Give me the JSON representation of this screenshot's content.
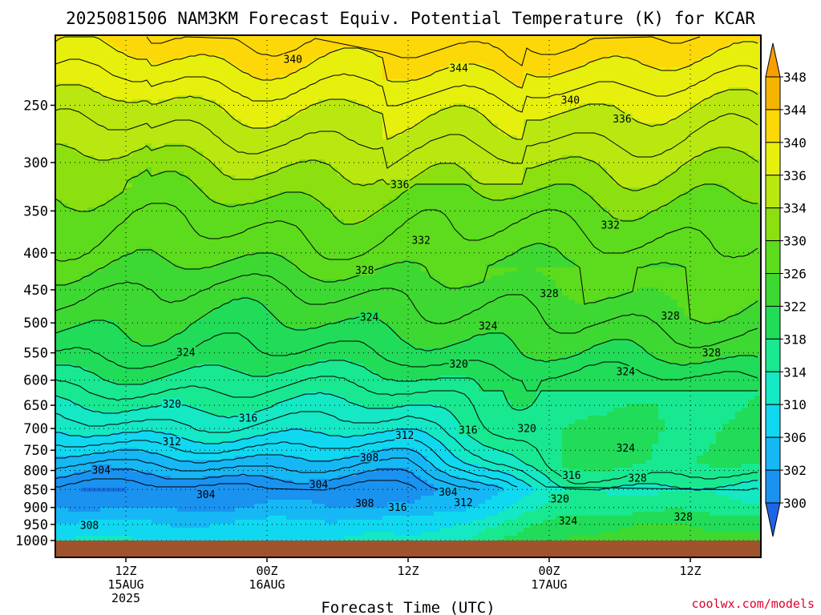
{
  "chart_data": {
    "type": "heatmap",
    "title": "2025081506 NAM3KM Forecast Equiv. Potential Temperature (K) for KCAR",
    "xlabel": "Forecast Time (UTC)",
    "ylabel": "",
    "credit": "coolwx.com/models",
    "x_range_hours": [
      0,
      60
    ],
    "y_scale": "log",
    "y_range_hpa": [
      1000,
      200
    ],
    "y_ticks": [
      {
        "value": 250,
        "label": "250"
      },
      {
        "value": 300,
        "label": "300"
      },
      {
        "value": 350,
        "label": "350"
      },
      {
        "value": 400,
        "label": "400"
      },
      {
        "value": 450,
        "label": "450"
      },
      {
        "value": 500,
        "label": "500"
      },
      {
        "value": 550,
        "label": "550"
      },
      {
        "value": 600,
        "label": "600"
      },
      {
        "value": 650,
        "label": "650"
      },
      {
        "value": 700,
        "label": "700"
      },
      {
        "value": 750,
        "label": "750"
      },
      {
        "value": 800,
        "label": "800"
      },
      {
        "value": 850,
        "label": "850"
      },
      {
        "value": 900,
        "label": "900"
      },
      {
        "value": 950,
        "label": "950"
      },
      {
        "value": 1000,
        "label": "1000"
      }
    ],
    "x_ticks": [
      {
        "hour": 6,
        "lines": [
          "12Z",
          "15AUG",
          "2025"
        ]
      },
      {
        "hour": 18,
        "lines": [
          "00Z",
          "16AUG"
        ]
      },
      {
        "hour": 30,
        "lines": [
          "12Z"
        ]
      },
      {
        "hour": 42,
        "lines": [
          "00Z",
          "17AUG"
        ]
      },
      {
        "hour": 54,
        "lines": [
          "12Z"
        ]
      }
    ],
    "grid": true,
    "colorbar": {
      "placement": "right",
      "levels": [
        300,
        302,
        306,
        310,
        314,
        318,
        322,
        326,
        330,
        334,
        336,
        340,
        344,
        348
      ],
      "labels": [
        "300",
        "302",
        "306",
        "310",
        "314",
        "318",
        "322",
        "326",
        "330",
        "334",
        "336",
        "340",
        "344",
        "348"
      ],
      "colors": [
        "#1a6ee0",
        "#1a92f0",
        "#15b8f5",
        "#10d8f0",
        "#14e8c4",
        "#18e890",
        "#20dc58",
        "#3ed832",
        "#5cdc1c",
        "#8ce010",
        "#b8e810",
        "#e6f00c",
        "#fcd808",
        "#f5b400"
      ],
      "extend_low_color": "#1e64e6",
      "extend_high_color": "#f5a000"
    },
    "ground_color": "#a0522d",
    "contour_labels": [
      {
        "hour": 20.2,
        "p": 216,
        "text": "340"
      },
      {
        "hour": 34.3,
        "p": 222,
        "text": "344"
      },
      {
        "hour": 43.8,
        "p": 246,
        "text": "340"
      },
      {
        "hour": 48.2,
        "p": 261,
        "text": "336"
      },
      {
        "hour": 29.3,
        "p": 322,
        "text": "336"
      },
      {
        "hour": 31.1,
        "p": 384,
        "text": "332"
      },
      {
        "hour": 47.2,
        "p": 366,
        "text": "332"
      },
      {
        "hour": 26.3,
        "p": 423,
        "text": "328"
      },
      {
        "hour": 42.0,
        "p": 455,
        "text": "328"
      },
      {
        "hour": 52.3,
        "p": 489,
        "text": "328"
      },
      {
        "hour": 55.8,
        "p": 550,
        "text": "328"
      },
      {
        "hour": 26.7,
        "p": 491,
        "text": "324"
      },
      {
        "hour": 36.8,
        "p": 505,
        "text": "324"
      },
      {
        "hour": 11.1,
        "p": 549,
        "text": "324"
      },
      {
        "hour": 48.5,
        "p": 584,
        "text": "324"
      },
      {
        "hour": 34.3,
        "p": 570,
        "text": "320"
      },
      {
        "hour": 9.9,
        "p": 647,
        "text": "320"
      },
      {
        "hour": 40.1,
        "p": 700,
        "text": "320"
      },
      {
        "hour": 16.4,
        "p": 677,
        "text": "316"
      },
      {
        "hour": 35.1,
        "p": 703,
        "text": "316"
      },
      {
        "hour": 9.9,
        "p": 730,
        "text": "312"
      },
      {
        "hour": 29.7,
        "p": 715,
        "text": "312"
      },
      {
        "hour": 26.7,
        "p": 768,
        "text": "308"
      },
      {
        "hour": 3.9,
        "p": 799,
        "text": "304"
      },
      {
        "hour": 22.4,
        "p": 836,
        "text": "304"
      },
      {
        "hour": 33.4,
        "p": 857,
        "text": "304"
      },
      {
        "hour": 12.8,
        "p": 864,
        "text": "304"
      },
      {
        "hour": 26.3,
        "p": 888,
        "text": "308"
      },
      {
        "hour": 29.1,
        "p": 900,
        "text": "316"
      },
      {
        "hour": 34.7,
        "p": 886,
        "text": "312"
      },
      {
        "hour": 42.9,
        "p": 876,
        "text": "320"
      },
      {
        "hour": 43.9,
        "p": 812,
        "text": "316"
      },
      {
        "hour": 49.5,
        "p": 820,
        "text": "328"
      },
      {
        "hour": 48.5,
        "p": 745,
        "text": "324"
      },
      {
        "hour": 43.6,
        "p": 940,
        "text": "324"
      },
      {
        "hour": 53.4,
        "p": 927,
        "text": "328"
      },
      {
        "hour": 2.9,
        "p": 953,
        "text": "308"
      }
    ]
  }
}
